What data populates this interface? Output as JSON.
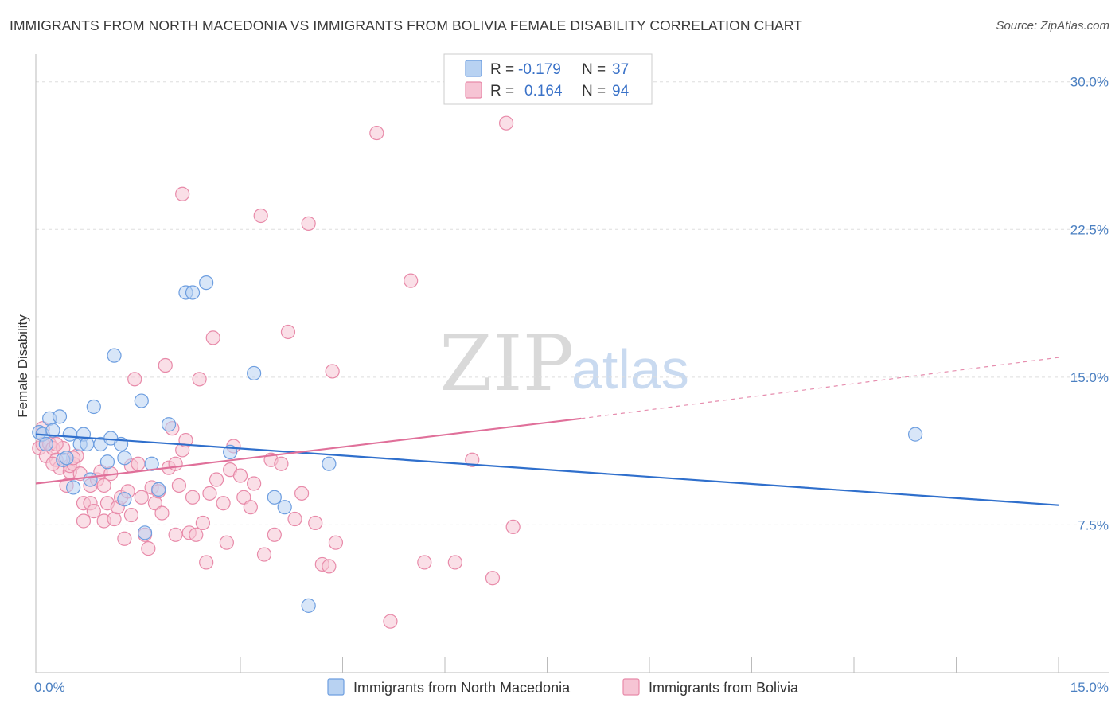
{
  "title": "IMMIGRANTS FROM NORTH MACEDONIA VS IMMIGRANTS FROM BOLIVIA FEMALE DISABILITY CORRELATION CHART",
  "source": "Source: ZipAtlas.com",
  "watermark": {
    "zip": "ZIP",
    "atlas": "atlas"
  },
  "colors": {
    "blue_fill": "#b8d2f2",
    "blue_stroke": "#6d9ee0",
    "blue_line": "#2f6fcc",
    "pink_fill": "#f6c4d4",
    "pink_stroke": "#e88aa9",
    "pink_line": "#e0709a"
  },
  "legend": {
    "rows": [
      {
        "r_label": "R =",
        "r_value": "-0.179",
        "n_label": "N =",
        "n_value": "37"
      },
      {
        "r_label": "R =",
        "r_value": "0.164",
        "n_label": "N =",
        "n_value": "94"
      }
    ]
  },
  "chart_data": {
    "type": "scatter",
    "title": "IMMIGRANTS FROM NORTH MACEDONIA VS IMMIGRANTS FROM BOLIVIA FEMALE DISABILITY CORRELATION CHART",
    "xlabel": "",
    "ylabel": "Female Disability",
    "xlim": [
      0,
      15
    ],
    "ylim": [
      0,
      31
    ],
    "x_tick_labels": [
      "0.0%",
      "15.0%"
    ],
    "y_ticks": [
      {
        "value": 7.5,
        "label": "7.5%"
      },
      {
        "value": 15.0,
        "label": "15.0%"
      },
      {
        "value": 22.5,
        "label": "22.5%"
      },
      {
        "value": 30.0,
        "label": "30.0%"
      }
    ],
    "grid": true,
    "legend_position": "bottom",
    "series": [
      {
        "name": "Immigrants from North Macedonia",
        "color": "blue",
        "r": -0.179,
        "n": 37,
        "trend": {
          "x0": 0,
          "y0": 12.1,
          "x1": 15,
          "y1": 8.5
        },
        "points": [
          [
            0.05,
            12.2
          ],
          [
            0.1,
            12.1
          ],
          [
            0.15,
            11.6
          ],
          [
            0.2,
            12.9
          ],
          [
            0.25,
            12.3
          ],
          [
            0.35,
            13.0
          ],
          [
            0.4,
            10.8
          ],
          [
            0.45,
            10.9
          ],
          [
            0.55,
            9.4
          ],
          [
            0.5,
            12.1
          ],
          [
            0.65,
            11.6
          ],
          [
            0.7,
            12.1
          ],
          [
            0.75,
            11.6
          ],
          [
            0.85,
            13.5
          ],
          [
            0.8,
            9.8
          ],
          [
            0.95,
            11.6
          ],
          [
            1.05,
            10.7
          ],
          [
            1.1,
            11.9
          ],
          [
            1.15,
            16.1
          ],
          [
            1.25,
            11.6
          ],
          [
            1.3,
            8.8
          ],
          [
            1.3,
            10.9
          ],
          [
            1.55,
            13.8
          ],
          [
            1.6,
            7.1
          ],
          [
            1.7,
            10.6
          ],
          [
            1.8,
            9.3
          ],
          [
            1.95,
            12.6
          ],
          [
            2.2,
            19.3
          ],
          [
            2.3,
            19.3
          ],
          [
            2.5,
            19.8
          ],
          [
            2.85,
            11.2
          ],
          [
            3.2,
            15.2
          ],
          [
            3.5,
            8.9
          ],
          [
            3.65,
            8.4
          ],
          [
            4.0,
            3.4
          ],
          [
            4.3,
            10.6
          ],
          [
            12.9,
            12.1
          ]
        ]
      },
      {
        "name": "Immigrants from Bolivia",
        "color": "pink",
        "r": 0.164,
        "n": 94,
        "trend": {
          "x0": 0,
          "y0": 9.6,
          "x1": 8.0,
          "y1": 12.9
        },
        "trend_dashed": {
          "x0": 8.0,
          "y0": 12.9,
          "x1": 15,
          "y1": 16.0
        },
        "points": [
          [
            0.05,
            11.4
          ],
          [
            0.1,
            11.6
          ],
          [
            0.1,
            12.4
          ],
          [
            0.15,
            11.0
          ],
          [
            0.2,
            11.6
          ],
          [
            0.25,
            11.4
          ],
          [
            0.3,
            10.8
          ],
          [
            0.35,
            10.4
          ],
          [
            0.4,
            11.4
          ],
          [
            0.45,
            9.5
          ],
          [
            0.5,
            10.2
          ],
          [
            0.5,
            10.5
          ],
          [
            0.55,
            10.6
          ],
          [
            0.6,
            11.0
          ],
          [
            0.65,
            10.1
          ],
          [
            0.7,
            8.6
          ],
          [
            0.7,
            7.7
          ],
          [
            0.8,
            8.6
          ],
          [
            0.8,
            9.5
          ],
          [
            0.85,
            8.2
          ],
          [
            0.9,
            9.8
          ],
          [
            0.95,
            10.2
          ],
          [
            1.0,
            7.7
          ],
          [
            1.0,
            9.5
          ],
          [
            1.05,
            8.6
          ],
          [
            1.1,
            10.1
          ],
          [
            1.15,
            7.8
          ],
          [
            1.2,
            8.4
          ],
          [
            1.25,
            8.9
          ],
          [
            1.3,
            6.8
          ],
          [
            1.35,
            9.2
          ],
          [
            1.4,
            8.0
          ],
          [
            1.4,
            10.5
          ],
          [
            1.45,
            14.9
          ],
          [
            1.5,
            10.6
          ],
          [
            1.55,
            8.9
          ],
          [
            1.6,
            7.0
          ],
          [
            1.65,
            6.3
          ],
          [
            1.7,
            9.4
          ],
          [
            1.75,
            8.6
          ],
          [
            1.8,
            9.2
          ],
          [
            1.85,
            8.1
          ],
          [
            1.9,
            15.6
          ],
          [
            1.95,
            10.4
          ],
          [
            2.0,
            12.4
          ],
          [
            2.05,
            10.6
          ],
          [
            2.05,
            7.0
          ],
          [
            2.1,
            9.5
          ],
          [
            2.15,
            11.3
          ],
          [
            2.15,
            24.3
          ],
          [
            2.2,
            11.8
          ],
          [
            2.25,
            7.1
          ],
          [
            2.3,
            8.9
          ],
          [
            2.35,
            7.0
          ],
          [
            2.4,
            14.9
          ],
          [
            2.45,
            7.6
          ],
          [
            2.5,
            5.6
          ],
          [
            2.55,
            9.1
          ],
          [
            2.6,
            17.0
          ],
          [
            2.65,
            9.8
          ],
          [
            2.75,
            8.6
          ],
          [
            2.8,
            6.6
          ],
          [
            2.85,
            10.3
          ],
          [
            2.9,
            11.5
          ],
          [
            3.0,
            10.0
          ],
          [
            3.05,
            8.9
          ],
          [
            3.15,
            8.4
          ],
          [
            3.2,
            9.6
          ],
          [
            3.3,
            23.2
          ],
          [
            3.35,
            6.0
          ],
          [
            3.45,
            10.8
          ],
          [
            3.5,
            7.0
          ],
          [
            3.6,
            10.6
          ],
          [
            3.7,
            17.3
          ],
          [
            3.8,
            7.8
          ],
          [
            3.9,
            9.1
          ],
          [
            4.0,
            22.8
          ],
          [
            4.1,
            7.6
          ],
          [
            4.2,
            5.5
          ],
          [
            4.3,
            5.4
          ],
          [
            4.35,
            15.3
          ],
          [
            4.4,
            6.6
          ],
          [
            5.0,
            27.4
          ],
          [
            5.2,
            2.6
          ],
          [
            5.5,
            19.9
          ],
          [
            5.7,
            5.6
          ],
          [
            6.15,
            5.6
          ],
          [
            6.4,
            10.8
          ],
          [
            6.7,
            4.8
          ],
          [
            6.9,
            27.9
          ],
          [
            7.0,
            7.4
          ],
          [
            0.3,
            11.6
          ],
          [
            0.55,
            10.9
          ],
          [
            0.25,
            10.6
          ]
        ]
      }
    ]
  },
  "bottom_legend": {
    "items": [
      {
        "label": "Immigrants from North Macedonia"
      },
      {
        "label": "Immigrants from Bolivia"
      }
    ]
  }
}
